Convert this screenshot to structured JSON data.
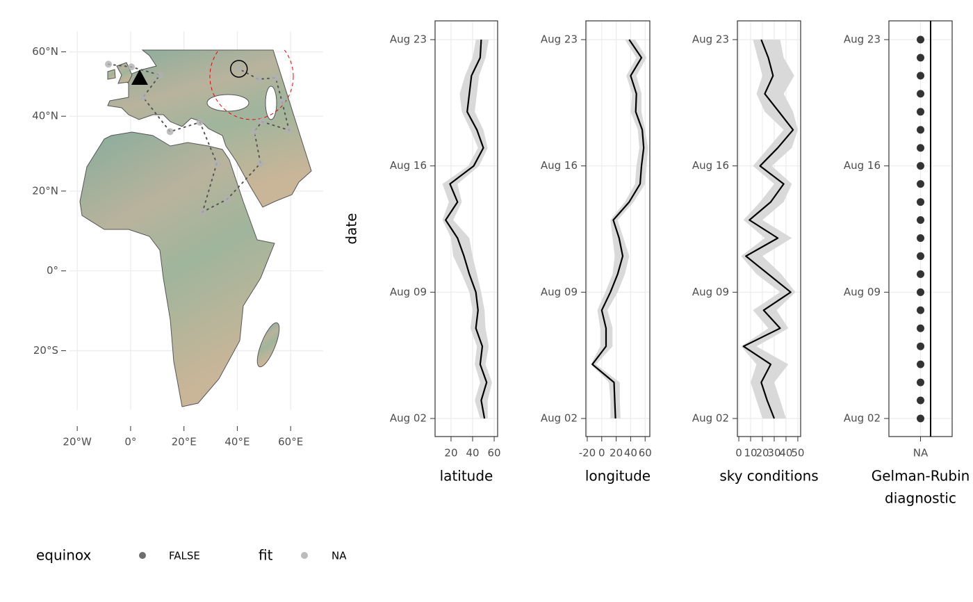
{
  "chart_data": [
    {
      "type": "map",
      "xlim": [
        -22.9,
        72.2
      ],
      "ylim": [
        -35.7,
        67.7
      ],
      "xticks": [
        {
          "value": -20,
          "label": "20°W"
        },
        {
          "value": 0,
          "label": "0°"
        },
        {
          "value": 20,
          "label": "20°E"
        },
        {
          "value": 40,
          "label": "40°E"
        },
        {
          "value": 60,
          "label": "60°E"
        }
      ],
      "yticks": [
        {
          "value": 60,
          "label": "60°N"
        },
        {
          "value": 40,
          "label": "40°N"
        },
        {
          "value": 20,
          "label": "20°N"
        },
        {
          "value": 0,
          "label": "0°"
        },
        {
          "value": -20,
          "label": "20°S"
        }
      ],
      "grid": true,
      "track": {
        "x": [
          -8.3,
          0.3,
          11,
          4.7,
          14.8,
          26,
          32.3,
          27,
          36.2,
          48.7,
          46.4,
          49.2,
          59.4,
          56.8,
          54.4,
          47.9,
          40.6
        ],
        "y": [
          55.8,
          54.9,
          52.3,
          45.5,
          35.7,
          38.3,
          27.2,
          14.7,
          17.9,
          27.2,
          35.7,
          38.5,
          36.1,
          44.1,
          51.4,
          51,
          54.3
        ]
      },
      "start": {
        "x": 3.4,
        "y": 51.4
      },
      "end": {
        "x": 40.6,
        "y": 54.3
      },
      "legend": [
        {
          "title": "equinox",
          "label": "FALSE",
          "color": "#555555"
        },
        {
          "title": "fit",
          "label": "NA",
          "color": "#b0b0b0"
        }
      ]
    },
    {
      "type": "ribbon",
      "categories": [
        "Aug 02",
        null,
        null,
        null,
        null,
        null,
        null,
        "Aug 09",
        null,
        null,
        null,
        null,
        null,
        null,
        "Aug 16",
        null,
        null,
        null,
        null,
        null,
        null,
        "Aug 23"
      ],
      "ylabel": "date",
      "xlabel": "latitude",
      "xlim": [
        5.2,
        63.2
      ],
      "xticks": [
        20,
        40,
        60
      ],
      "values": [
        51,
        48,
        53,
        47,
        49,
        43,
        45,
        43,
        37,
        32,
        26,
        15,
        26,
        19,
        41,
        50,
        44,
        35,
        37,
        39,
        47,
        48
      ],
      "lower": [
        47,
        42,
        47,
        42,
        44,
        38,
        40,
        37,
        30,
        22,
        20,
        12,
        18,
        12,
        36,
        45,
        38,
        30,
        28,
        33,
        40,
        43
      ],
      "upper": [
        54,
        54,
        58,
        52,
        55,
        52,
        51,
        48,
        44,
        40,
        37,
        22,
        30,
        26,
        46,
        54,
        50,
        42,
        44,
        46,
        52,
        55
      ],
      "color": "#000000",
      "band_color": "#d9d9d9",
      "grid": true
    },
    {
      "type": "ribbon",
      "categories": [
        "Aug 02",
        null,
        null,
        null,
        null,
        null,
        null,
        "Aug 09",
        null,
        null,
        null,
        null,
        null,
        null,
        "Aug 16",
        null,
        null,
        null,
        null,
        null,
        null,
        "Aug 23"
      ],
      "xlabel": "longitude",
      "xlim": [
        -21.9,
        66.5
      ],
      "xticks": [
        -20,
        0,
        20,
        40,
        60
      ],
      "values": [
        19,
        18,
        17,
        -13,
        6,
        6,
        0,
        12,
        22,
        29,
        24,
        16,
        38,
        53,
        55,
        58,
        56,
        47,
        48,
        40,
        55,
        38
      ],
      "lower": [
        12,
        12,
        10,
        -15,
        -2,
        -2,
        -6,
        5,
        15,
        18,
        15,
        12,
        32,
        46,
        48,
        52,
        50,
        40,
        42,
        34,
        48,
        32
      ],
      "upper": [
        26,
        25,
        25,
        -8,
        15,
        15,
        8,
        22,
        32,
        38,
        30,
        22,
        44,
        60,
        62,
        64,
        60,
        55,
        55,
        48,
        62,
        46
      ],
      "color": "#000000",
      "band_color": "#d9d9d9",
      "grid": true
    },
    {
      "type": "ribbon",
      "categories": [
        "Aug 02",
        null,
        null,
        null,
        null,
        null,
        null,
        "Aug 09",
        null,
        null,
        null,
        null,
        null,
        null,
        "Aug 16",
        null,
        null,
        null,
        null,
        null,
        null,
        "Aug 23"
      ],
      "xlabel": "sky conditions",
      "xlim": [
        -1.2,
        52.4
      ],
      "xticks": [
        0,
        10,
        20,
        30,
        40,
        50
      ],
      "values": [
        30,
        24,
        19,
        27,
        4,
        35,
        21,
        44,
        25,
        6,
        33,
        9,
        27,
        38,
        18,
        33,
        46,
        34,
        22,
        29,
        25,
        19
      ],
      "lower": [
        20,
        15,
        10,
        15,
        2,
        25,
        12,
        35,
        15,
        2,
        22,
        4,
        18,
        30,
        12,
        25,
        38,
        22,
        15,
        20,
        16,
        12
      ],
      "upper": [
        40,
        35,
        30,
        42,
        15,
        42,
        32,
        48,
        36,
        20,
        45,
        20,
        38,
        45,
        28,
        45,
        50,
        46,
        38,
        47,
        38,
        35
      ],
      "color": "#000000",
      "band_color": "#d9d9d9",
      "grid": true
    },
    {
      "type": "strip",
      "categories": [
        "Aug 02",
        null,
        null,
        null,
        null,
        null,
        null,
        "Aug 09",
        null,
        null,
        null,
        null,
        null,
        null,
        "Aug 16",
        null,
        null,
        null,
        null,
        null,
        null,
        "Aug 23"
      ],
      "xlabel": [
        "Gelman-Rubin",
        "diagnostic"
      ],
      "xcategories": [
        "NA"
      ],
      "values": [
        null,
        null,
        null,
        null,
        null,
        null,
        null,
        null,
        null,
        null,
        null,
        null,
        null,
        null,
        null,
        null,
        null,
        null,
        null,
        null,
        null,
        null
      ],
      "color": "#333333",
      "grid": true
    }
  ]
}
